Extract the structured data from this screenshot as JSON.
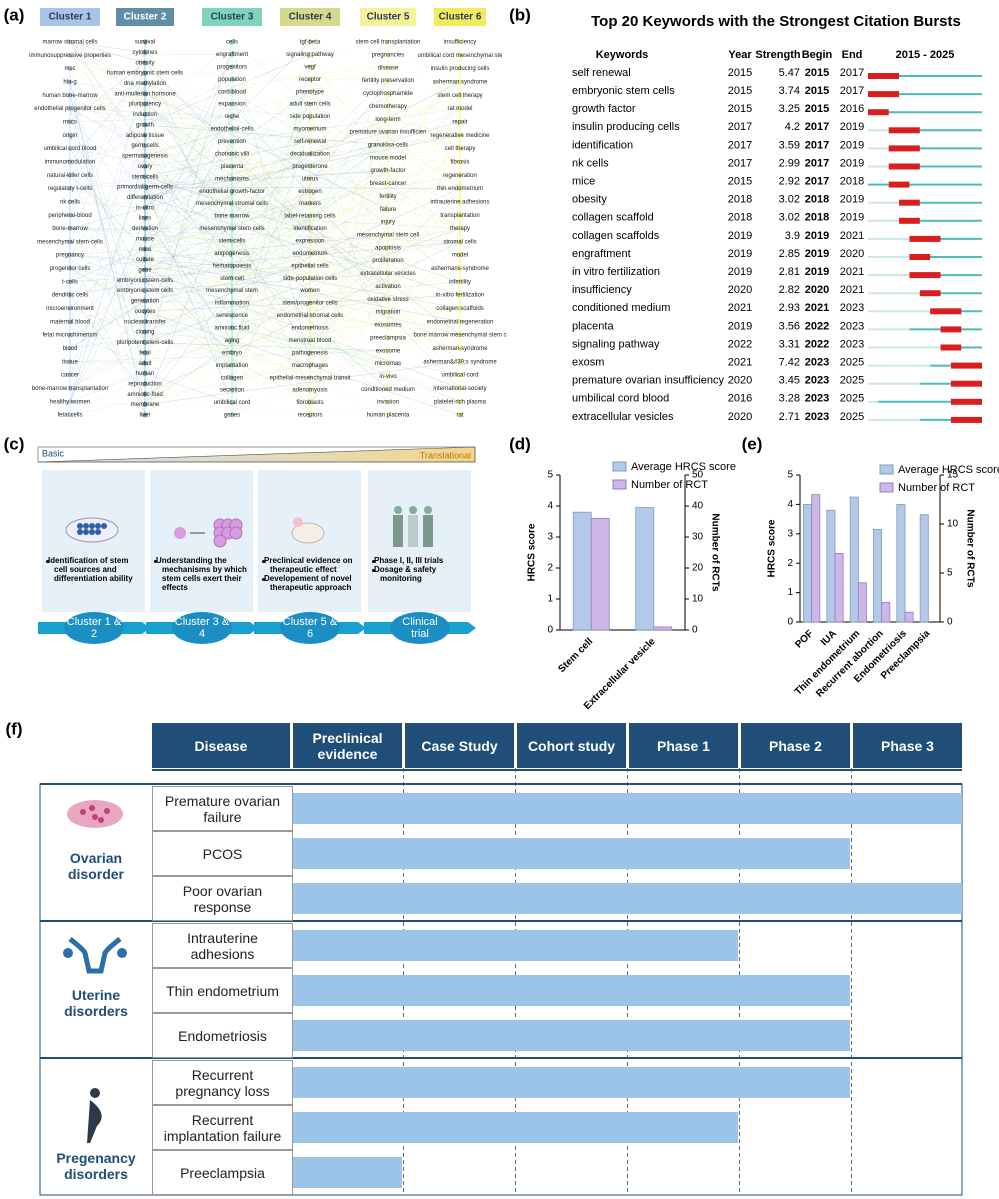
{
  "panel_labels": [
    "(a)",
    "(b)",
    "(c)",
    "(d)",
    "(e)",
    "(f)"
  ],
  "cluster_map": {
    "clusters": [
      {
        "name": "Cluster 1",
        "color": "#a9c4e8",
        "keywords": [
          "marrow stromal cells",
          "immunosuppressive properties",
          "msc",
          "hla-g",
          "human bone-marrow",
          "endothelial progenitor cells",
          "mscs",
          "origin",
          "umbilical cord blood",
          "immunomodulation",
          "natural-killer cells",
          "regulatory t-cells",
          "nk cells",
          "peripheral-blood",
          "bone-marrow",
          "mesenchymal stem-cells",
          "pregnancy",
          "progenitor cells",
          "t-cells",
          "dendritic cells",
          "microenvironment",
          "maternal blood",
          "fetal microchimerism",
          "blood",
          "tissue",
          "cancer",
          "bone-marrow transplantation",
          "healthy women",
          "fetal cells"
        ]
      },
      {
        "name": "Cluster 2",
        "color": "#5f8fa8",
        "keywords": [
          "survival",
          "cytokines",
          "obesity",
          "human embryonic stem cells",
          "dna methylation",
          "anti-mullerian hormone",
          "pluripotency",
          "induction",
          "growth",
          "adipose tissue",
          "germ cells",
          "spermatogenesis",
          "ovary",
          "stem-cells",
          "primordial germ-cells",
          "differentiation",
          "in-vitro",
          "lines",
          "derivation",
          "mouse",
          "mice",
          "culture",
          "gene",
          "embryonic stem-cells",
          "embryonic stem cells",
          "generation",
          "oocytes",
          "nuclear transfer",
          "cloning",
          "pluripotent stem-cells",
          "fetal",
          "adult",
          "human",
          "reproduction",
          "amniotic-fluid",
          "membrane",
          "liver"
        ]
      },
      {
        "name": "Cluster 3",
        "color": "#7fd3b8",
        "keywords": [
          "cells",
          "engraftment",
          "progenitors",
          "population",
          "cord blood",
          "expansion",
          "niche",
          "endothelial-cells",
          "prevention",
          "chorionic villi",
          "placenta",
          "mechanisms",
          "endothelial growth-factor",
          "mesenchymal stromal cells",
          "bone marrow",
          "mesenchymal stem cells",
          "stem-cells",
          "angiogenesis",
          "hematopoiesis",
          "stem cell",
          "mesenchymal stem",
          "inflammation",
          "senescence",
          "amniotic fluid",
          "aging",
          "embryo",
          "implantation",
          "collagen",
          "secretion",
          "umbilical cord",
          "genes"
        ]
      },
      {
        "name": "Cluster 4",
        "color": "#d6d98a",
        "keywords": [
          "tgf-beta",
          "signaling pathway",
          "vegf",
          "receptor",
          "phenotype",
          "adult stem cells",
          "side population",
          "myometrium",
          "self-renewal",
          "decidualization",
          "progesterone",
          "uterus",
          "estrogen",
          "markers",
          "label-retaining cells",
          "identification",
          "expression",
          "endometrium",
          "epithelial cells",
          "side-population cells",
          "women",
          "stem/progenitor cells",
          "endometrial stromal cells",
          "endometriosis",
          "menstrual blood",
          "pathogenesis",
          "macrophages",
          "epithelial-mesenchymal transit",
          "adenomyosis",
          "fibroblasts",
          "receptors"
        ]
      },
      {
        "name": "Cluster 5",
        "color": "#f3f39a",
        "keywords": [
          "stem cell transplantation",
          "pregnancies",
          "disease",
          "fertility preservation",
          "cyclophosphamide",
          "chemotherapy",
          "long-term",
          "premature ovarian insufficien",
          "granulosa-cells",
          "mouse model",
          "growth-factor",
          "breast-cancer",
          "fertility",
          "failure",
          "injury",
          "mesenchymal stem cell",
          "apoptosis",
          "proliferation",
          "extracellular vesicles",
          "activation",
          "oxidative stress",
          "migration",
          "exosomes",
          "preeclampsia",
          "exosome",
          "micrornas",
          "in-vivo",
          "conditioned medium",
          "invasion",
          "human placenta"
        ]
      },
      {
        "name": "Cluster 6",
        "color": "#f2ec5c",
        "keywords": [
          "insufficiency",
          "umbilical cord mesenchymal ste",
          "insulin producing cells",
          "asherman syndrome",
          "stem cell therapy",
          "rat model",
          "repair",
          "regenerative medicine",
          "cell therapy",
          "fibrosis",
          "regeneration",
          "thin endometrium",
          "intrauterine adhesions",
          "transplantation",
          "therapy",
          "stromal cells",
          "model",
          "ashermans-syndrome",
          "infertility",
          "in-vitro fertilization",
          "collagen scaffolds",
          "endometrial regeneration",
          "bone marrow mesenchymal stem c",
          "asherman-syndrome",
          "asherman&#39;s syndrome",
          "umbilical-cord",
          "international-society",
          "platelet-rich plasma",
          "rat"
        ]
      }
    ]
  },
  "burst_table": {
    "title": "Top 20 Keywords with the Strongest Citation Bursts",
    "columns": [
      "Keywords",
      "Year",
      "Strength",
      "Begin",
      "End"
    ],
    "range_label": "2015 - 2025",
    "xlim": [
      2015,
      2025
    ],
    "rows": [
      {
        "keyword": "self renewal",
        "year": 2015,
        "strength": 5.47,
        "begin": 2015,
        "end": 2017
      },
      {
        "keyword": "embryonic stem cells",
        "year": 2015,
        "strength": 3.74,
        "begin": 2015,
        "end": 2017
      },
      {
        "keyword": "growth factor",
        "year": 2015,
        "strength": 3.25,
        "begin": 2015,
        "end": 2016
      },
      {
        "keyword": "insulin producing cells",
        "year": 2017,
        "strength": 4.2,
        "begin": 2017,
        "end": 2019
      },
      {
        "keyword": "identification",
        "year": 2017,
        "strength": 3.59,
        "begin": 2017,
        "end": 2019
      },
      {
        "keyword": "nk cells",
        "year": 2017,
        "strength": 2.99,
        "begin": 2017,
        "end": 2019
      },
      {
        "keyword": "mice",
        "year": 2015,
        "strength": 2.92,
        "begin": 2017,
        "end": 2018
      },
      {
        "keyword": "obesity",
        "year": 2018,
        "strength": 3.02,
        "begin": 2018,
        "end": 2019
      },
      {
        "keyword": "collagen scaffold",
        "year": 2018,
        "strength": 3.02,
        "begin": 2018,
        "end": 2019
      },
      {
        "keyword": "collagen scaffolds",
        "year": 2019,
        "strength": 3.9,
        "begin": 2019,
        "end": 2021
      },
      {
        "keyword": "engraftment",
        "year": 2019,
        "strength": 2.85,
        "begin": 2019,
        "end": 2020
      },
      {
        "keyword": "in vitro fertilization",
        "year": 2019,
        "strength": 2.81,
        "begin": 2019,
        "end": 2021
      },
      {
        "keyword": "insufficiency",
        "year": 2020,
        "strength": 2.82,
        "begin": 2020,
        "end": 2021
      },
      {
        "keyword": "conditioned medium",
        "year": 2021,
        "strength": 2.93,
        "begin": 2021,
        "end": 2023
      },
      {
        "keyword": "placenta",
        "year": 2019,
        "strength": 3.56,
        "begin": 2022,
        "end": 2023
      },
      {
        "keyword": "signaling pathway",
        "year": 2022,
        "strength": 3.31,
        "begin": 2022,
        "end": 2023
      },
      {
        "keyword": "exosm",
        "year": 2021,
        "strength": 7.42,
        "begin": 2023,
        "end": 2025
      },
      {
        "keyword": "premature ovarian insufficiency",
        "year": 2020,
        "strength": 3.45,
        "begin": 2023,
        "end": 2025
      },
      {
        "keyword": "umbilical cord blood",
        "year": 2016,
        "strength": 3.28,
        "begin": 2023,
        "end": 2025
      },
      {
        "keyword": "extracellular vesicles",
        "year": 2020,
        "strength": 2.71,
        "begin": 2023,
        "end": 2025
      }
    ]
  },
  "schematic": {
    "start": "Basic",
    "end": "Translational",
    "steps": [
      {
        "bullets": [
          "Identification of stem cell sources and differentiation ability"
        ],
        "stage": "Cluster 1 & 2"
      },
      {
        "bullets": [
          "Understanding the mechanisms by which stem cells exert their effects"
        ],
        "stage": "Cluster 3 & 4"
      },
      {
        "bullets": [
          "Preclinical evidence on therapeutic effect",
          "Developement of novel therapeutic approach"
        ],
        "stage": "Cluster 5 & 6"
      },
      {
        "bullets": [
          "Phase I, II, III trials",
          "Dosage & safety monitoring"
        ],
        "stage": "Clinical trial"
      }
    ]
  },
  "chart_data": [
    {
      "type": "bar",
      "categories": [
        "Stem cell",
        "Extracellular vesicle"
      ],
      "series": [
        {
          "name": "Average HRCS score",
          "color": "#b4c9e8",
          "values": [
            3.8,
            3.95
          ]
        },
        {
          "name": "Number of RCT",
          "color": "#cdb7e6",
          "values": [
            36,
            1
          ],
          "axis": "y2"
        }
      ],
      "ylabel": "HRCS score",
      "y2label": "Number of RCTs",
      "ylim": [
        0,
        5
      ],
      "yticks": [
        0,
        1,
        2,
        3,
        4,
        5
      ],
      "y2lim": [
        0,
        50
      ],
      "y2ticks": [
        0,
        10,
        20,
        30,
        40,
        50
      ]
    },
    {
      "type": "bar",
      "categories": [
        "POF",
        "IUA",
        "Thin endometrium",
        "Recurrent abortion",
        "Endometriosis",
        "Preeclampsia"
      ],
      "series": [
        {
          "name": "Average HRCS score",
          "color": "#b4c9e8",
          "values": [
            4.0,
            3.8,
            4.25,
            3.15,
            4.0,
            3.65
          ]
        },
        {
          "name": "Number of RCT",
          "color": "#cdb7e6",
          "values": [
            13,
            7,
            4,
            2,
            1,
            0
          ],
          "axis": "y2"
        }
      ],
      "ylabel": "HRCS score",
      "y2label": "Number of RCTs",
      "ylim": [
        0,
        5
      ],
      "yticks": [
        0,
        1,
        2,
        3,
        4,
        5
      ],
      "y2lim": [
        0,
        15
      ],
      "y2ticks": [
        0,
        5,
        10,
        15
      ]
    }
  ],
  "progress_table": {
    "columns": [
      "Disease",
      "Preclinical evidence",
      "Case Study",
      "Cohort study",
      "Phase 1",
      "Phase 2",
      "Phase 3"
    ],
    "groups": [
      {
        "name": "Ovarian disorder",
        "rows": [
          {
            "disease": "Premature ovarian failure",
            "reached": "Phase 3"
          },
          {
            "disease": "PCOS",
            "reached": "Phase 2"
          },
          {
            "disease": "Poor ovarian response",
            "reached": "Phase 3"
          }
        ]
      },
      {
        "name": "Uterine disorders",
        "rows": [
          {
            "disease": "Intrauterine adhesions",
            "reached": "Phase 1"
          },
          {
            "disease": "Thin endometrium",
            "reached": "Phase 2"
          },
          {
            "disease": "Endometriosis",
            "reached": "Phase 2"
          }
        ]
      },
      {
        "name": "Pregenancy disorders",
        "rows": [
          {
            "disease": "Recurrent pregnancy loss",
            "reached": "Phase 2"
          },
          {
            "disease": "Recurrent implantation failure",
            "reached": "Phase 1"
          },
          {
            "disease": "Preeclampsia",
            "reached": "Preclinical evidence"
          }
        ]
      }
    ]
  }
}
